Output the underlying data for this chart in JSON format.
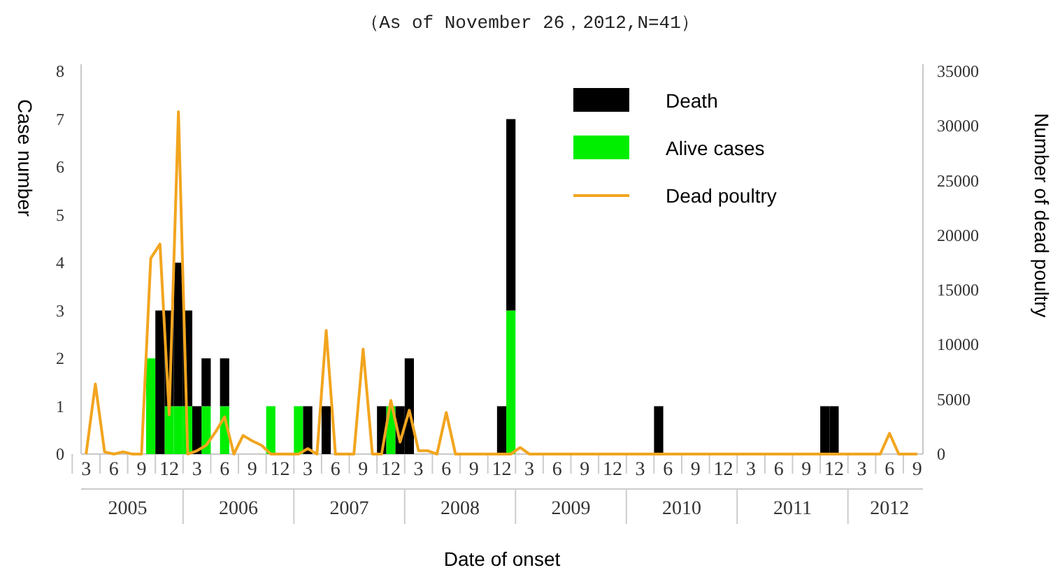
{
  "chart_data": {
    "type": "bar",
    "stacked": true,
    "title": "（As of November 26，2012,N=41）",
    "xlabel": "Date of onset",
    "ylabel": "Case number",
    "y2label": "Number of dead poultry",
    "xlim": [
      "2005-02-15",
      "2012-09-20"
    ],
    "xticks": [
      {
        "value": "2005-03",
        "label": "3"
      },
      {
        "value": "2005-06",
        "label": "6"
      },
      {
        "value": "2005-09",
        "label": "9"
      },
      {
        "value": "2005-12",
        "label": "12"
      },
      {
        "value": "2006-03",
        "label": "3"
      },
      {
        "value": "2006-06",
        "label": "6"
      },
      {
        "value": "2006-09",
        "label": "9"
      },
      {
        "value": "2006-12",
        "label": "12"
      },
      {
        "value": "2007-03",
        "label": "3"
      },
      {
        "value": "2007-06",
        "label": "6"
      },
      {
        "value": "2007-09",
        "label": "9"
      },
      {
        "value": "2007-12",
        "label": "12"
      },
      {
        "value": "2008-03",
        "label": "3"
      },
      {
        "value": "2008-06",
        "label": "6"
      },
      {
        "value": "2008-09",
        "label": "9"
      },
      {
        "value": "2008-12",
        "label": "12"
      },
      {
        "value": "2009-03",
        "label": "3"
      },
      {
        "value": "2009-06",
        "label": "6"
      },
      {
        "value": "2009-09",
        "label": "9"
      },
      {
        "value": "2009-12",
        "label": "12"
      },
      {
        "value": "2010-03",
        "label": "3"
      },
      {
        "value": "2010-06",
        "label": "6"
      },
      {
        "value": "2010-09",
        "label": "9"
      },
      {
        "value": "2010-12",
        "label": "12"
      },
      {
        "value": "2011-03",
        "label": "3"
      },
      {
        "value": "2011-06",
        "label": "6"
      },
      {
        "value": "2011-09",
        "label": "9"
      },
      {
        "value": "2011-12",
        "label": "12"
      },
      {
        "value": "2012-03",
        "label": "3"
      },
      {
        "value": "2012-06",
        "label": "6"
      },
      {
        "value": "2012-09",
        "label": "9"
      }
    ],
    "ylim": [
      0,
      8
    ],
    "yticks": [
      0,
      1,
      2,
      3,
      4,
      5,
      6,
      7,
      8
    ],
    "y2lim": [
      0,
      35000
    ],
    "y2ticks": [
      0,
      5000,
      10000,
      15000,
      20000,
      25000,
      30000,
      35000
    ],
    "grid": false,
    "legend": "top right",
    "annotations": [
      "2005",
      "2006",
      "2007",
      "2008",
      "2009",
      "2010",
      "2011",
      "2012"
    ],
    "x": [
      "2005-10",
      "2005-11",
      "2005-12",
      "2006-01",
      "2006-02",
      "2006-03",
      "2006-04",
      "2006-06",
      "2006-11",
      "2007-02",
      "2007-03",
      "2007-05",
      "2007-11",
      "2007-12",
      "2008-01",
      "2008-02",
      "2008-12",
      "2009-01",
      "2010-05",
      "2011-11",
      "2011-12"
    ],
    "series": [
      {
        "name": "Alive cases",
        "color": "#00ee00",
        "values": [
          2,
          null,
          1,
          1,
          1,
          null,
          1,
          1,
          1,
          1,
          null,
          null,
          null,
          1,
          null,
          null,
          null,
          3,
          null,
          null,
          null
        ]
      },
      {
        "name": "Death",
        "color": "#000000",
        "values": [
          null,
          3,
          2,
          3,
          2,
          1,
          1,
          1,
          null,
          null,
          1,
          1,
          1,
          null,
          1,
          2,
          1,
          4,
          1,
          1,
          1
        ]
      },
      {
        "name": "Dead poultry",
        "type": "line",
        "axis": "y2",
        "color": "#f2a51f",
        "marker": "none",
        "line_style": "solid",
        "x": [
          "2005-03",
          "2005-04",
          "2005-05",
          "2005-06",
          "2005-07",
          "2005-08",
          "2005-09",
          "2005-10",
          "2005-11",
          "2005-12",
          "2006-01",
          "2006-02",
          "2006-03",
          "2006-04",
          "2006-05",
          "2006-06",
          "2006-07",
          "2006-08",
          "2006-09",
          "2006-10",
          "2006-11",
          "2006-12",
          "2007-01",
          "2007-02",
          "2007-03",
          "2007-04",
          "2007-05",
          "2007-06",
          "2007-07",
          "2007-08",
          "2007-09",
          "2007-10",
          "2007-11",
          "2007-12",
          "2008-01",
          "2008-02",
          "2008-03",
          "2008-04",
          "2008-05",
          "2008-06",
          "2008-07",
          "2008-12",
          "2009-01",
          "2009-02",
          "2009-03",
          "2012-05",
          "2012-06",
          "2012-07",
          "2012-09"
        ],
        "values": [
          0,
          6400,
          200,
          0,
          200,
          0,
          0,
          17900,
          19200,
          3600,
          31300,
          0,
          300,
          800,
          2000,
          3400,
          0,
          1700,
          1200,
          800,
          0,
          0,
          0,
          0,
          500,
          0,
          11300,
          0,
          0,
          0,
          9600,
          0,
          0,
          4900,
          1100,
          4000,
          300,
          300,
          0,
          3800,
          0,
          0,
          0,
          600,
          0,
          0,
          1900,
          0,
          0
        ]
      }
    ]
  }
}
